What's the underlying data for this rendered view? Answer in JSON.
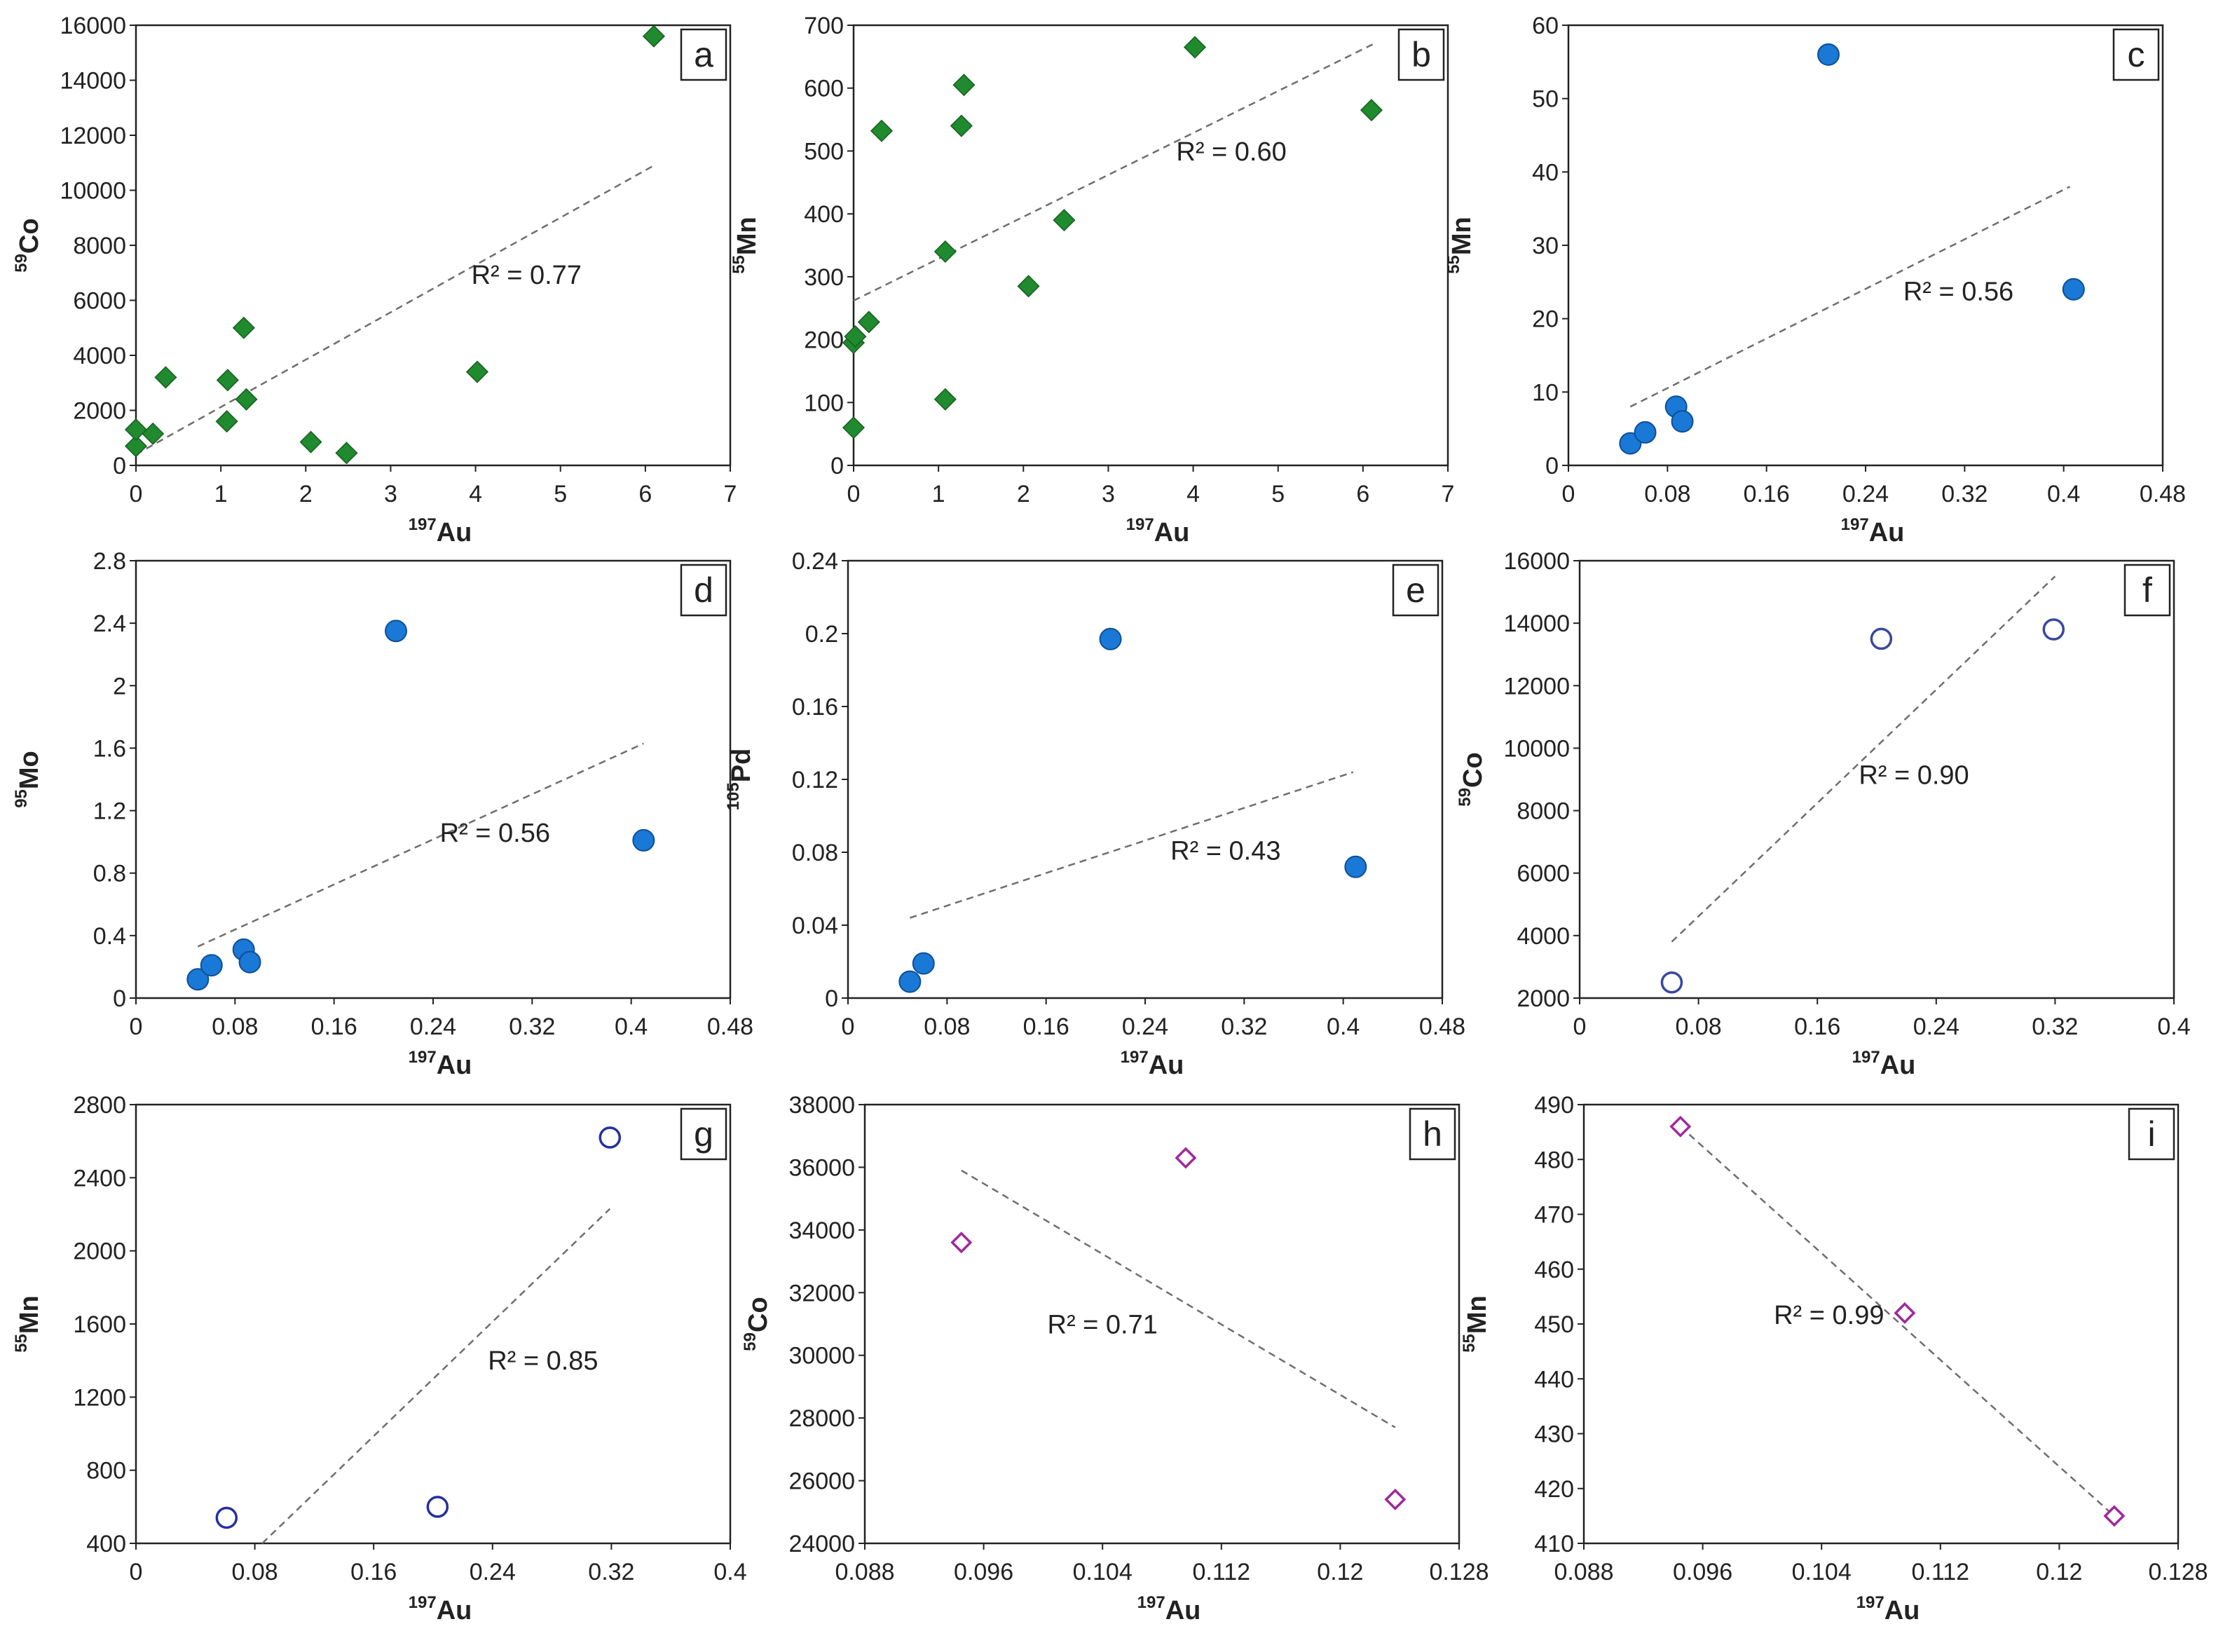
{
  "chart_data": [
    {
      "id": "a",
      "letter": "a",
      "type": "scatter",
      "marker": "diamond-filled",
      "color": "#1f8a2e",
      "xlabel": {
        "sup": "197",
        "base": "Au"
      },
      "ylabel": {
        "sup": "59",
        "base": "Co"
      },
      "xlim": [
        0,
        7
      ],
      "xticks": [
        0,
        1,
        2,
        3,
        4,
        5,
        6,
        7
      ],
      "xtick_labels": [
        "0",
        "1",
        "2",
        "3",
        "4",
        "5",
        "6",
        "7"
      ],
      "ylim": [
        0,
        16000
      ],
      "yticks": [
        0,
        2000,
        4000,
        6000,
        8000,
        10000,
        12000,
        14000,
        16000
      ],
      "ytick_labels": [
        "0",
        "2000",
        "4000",
        "6000",
        "8000",
        "10000",
        "12000",
        "14000",
        "16000"
      ],
      "x": [
        0.0,
        0.0,
        0.2,
        0.35,
        1.07,
        1.08,
        1.27,
        1.3,
        2.06,
        2.48,
        4.02,
        6.1
      ],
      "y": [
        700,
        1300,
        1150,
        3200,
        1600,
        3100,
        5000,
        2400,
        850,
        450,
        3400,
        15600
      ],
      "trendline": {
        "x": [
          0.0,
          6.1
        ],
        "y": [
          400,
          10900
        ]
      },
      "r2": {
        "label": "R² = 0.77",
        "x": 4.6,
        "y": 6600
      }
    },
    {
      "id": "b",
      "letter": "b",
      "type": "scatter",
      "marker": "diamond-filled",
      "color": "#1f8a2e",
      "xlabel": {
        "sup": "197",
        "base": "Au"
      },
      "ylabel": {
        "sup": "55",
        "base": "Mn"
      },
      "xlim": [
        0,
        7
      ],
      "xticks": [
        0,
        1,
        2,
        3,
        4,
        5,
        6,
        7
      ],
      "xtick_labels": [
        "0",
        "1",
        "2",
        "3",
        "4",
        "5",
        "6",
        "7"
      ],
      "ylim": [
        0,
        700
      ],
      "yticks": [
        0,
        100,
        200,
        300,
        400,
        500,
        600,
        700
      ],
      "ytick_labels": [
        "0",
        "100",
        "200",
        "300",
        "400",
        "500",
        "600",
        "700"
      ],
      "x": [
        0.0,
        0.0,
        0.02,
        0.18,
        0.33,
        1.08,
        1.08,
        1.27,
        1.3,
        2.06,
        2.48,
        4.02,
        6.1
      ],
      "y": [
        60,
        195,
        205,
        228,
        532,
        105,
        340,
        540,
        605,
        285,
        390,
        665,
        565
      ],
      "trendline": {
        "x": [
          0.0,
          6.15
        ],
        "y": [
          262,
          672
        ]
      },
      "r2": {
        "label": "R² = 0.60",
        "x": 4.45,
        "y": 485
      }
    },
    {
      "id": "c",
      "letter": "c",
      "type": "scatter",
      "marker": "circle-filled",
      "color": "#1a78d6",
      "xlabel": {
        "sup": "197",
        "base": "Au"
      },
      "ylabel": {
        "sup": "55",
        "base": "Mn"
      },
      "xlim": [
        0,
        0.48
      ],
      "xticks": [
        0,
        0.08,
        0.16,
        0.24,
        0.32,
        0.4,
        0.48
      ],
      "xtick_labels": [
        "0",
        "0.08",
        "0.16",
        "0.24",
        "0.32",
        "0.4",
        "0.48"
      ],
      "ylim": [
        0,
        60
      ],
      "yticks": [
        0,
        10,
        20,
        30,
        40,
        50,
        60
      ],
      "ytick_labels": [
        "0",
        "10",
        "20",
        "30",
        "40",
        "50",
        "60"
      ],
      "x": [
        0.05,
        0.062,
        0.087,
        0.092,
        0.21,
        0.408
      ],
      "y": [
        3,
        4.5,
        8,
        6,
        56,
        24
      ],
      "trendline": {
        "x": [
          0.05,
          0.405
        ],
        "y": [
          8,
          38
        ]
      },
      "r2": {
        "label": "R² = 0.56",
        "x": 0.315,
        "y": 22.5
      }
    },
    {
      "id": "d",
      "letter": "d",
      "type": "scatter",
      "marker": "circle-filled",
      "color": "#1a78d6",
      "xlabel": {
        "sup": "197",
        "base": "Au"
      },
      "ylabel": {
        "sup": "95",
        "base": "Mo"
      },
      "xlim": [
        0,
        0.48
      ],
      "xticks": [
        0,
        0.08,
        0.16,
        0.24,
        0.32,
        0.4,
        0.48
      ],
      "xtick_labels": [
        "0",
        "0.08",
        "0.16",
        "0.24",
        "0.32",
        "0.4",
        "0.48"
      ],
      "ylim": [
        0,
        2.8
      ],
      "yticks": [
        0,
        0.4,
        0.8,
        1.2,
        1.6,
        2,
        2.4,
        2.8
      ],
      "ytick_labels": [
        "0",
        "0.4",
        "0.8",
        "1.2",
        "1.6",
        "2",
        "2.4",
        "2.8"
      ],
      "x": [
        0.05,
        0.061,
        0.087,
        0.092,
        0.21,
        0.41
      ],
      "y": [
        0.12,
        0.21,
        0.31,
        0.23,
        2.35,
        1.01
      ],
      "trendline": {
        "x": [
          0.05,
          0.41
        ],
        "y": [
          0.33,
          1.63
        ]
      },
      "r2": {
        "label": "R² = 0.56",
        "x": 0.29,
        "y": 1.0
      }
    },
    {
      "id": "e",
      "letter": "e",
      "type": "scatter",
      "marker": "circle-filled",
      "color": "#1a78d6",
      "xlabel": {
        "sup": "197",
        "base": "Au"
      },
      "ylabel": {
        "sup": "105",
        "base": "Pd"
      },
      "xlim": [
        0,
        0.48
      ],
      "xticks": [
        0,
        0.08,
        0.16,
        0.24,
        0.32,
        0.4,
        0.48
      ],
      "xtick_labels": [
        "0",
        "0.08",
        "0.16",
        "0.24",
        "0.32",
        "0.4",
        "0.48"
      ],
      "ylim": [
        0,
        0.24
      ],
      "yticks": [
        0,
        0.04,
        0.08,
        0.12,
        0.16,
        0.2,
        0.24
      ],
      "ytick_labels": [
        "0",
        "0.04",
        "0.08",
        "0.12",
        "0.16",
        "0.2",
        "0.24"
      ],
      "x": [
        0.05,
        0.061,
        0.212,
        0.41
      ],
      "y": [
        0.009,
        0.019,
        0.197,
        0.072
      ],
      "trendline": {
        "x": [
          0.05,
          0.408
        ],
        "y": [
          0.044,
          0.124
        ]
      },
      "r2": {
        "label": "R² = 0.43",
        "x": 0.305,
        "y": 0.076
      }
    },
    {
      "id": "f",
      "letter": "f",
      "type": "scatter",
      "marker": "circle-open",
      "color": "#3848a0",
      "xlabel": {
        "sup": "197",
        "base": "Au"
      },
      "ylabel": {
        "sup": "59",
        "base": "Co"
      },
      "xlim": [
        0,
        0.4
      ],
      "xticks": [
        0,
        0.08,
        0.16,
        0.24,
        0.32,
        0.4
      ],
      "xtick_labels": [
        "0",
        "0.08",
        "0.16",
        "0.24",
        "0.32",
        "0.4"
      ],
      "ylim": [
        2000,
        16000
      ],
      "yticks": [
        2000,
        4000,
        6000,
        8000,
        10000,
        12000,
        14000,
        16000
      ],
      "ytick_labels": [
        "2000",
        "4000",
        "6000",
        "8000",
        "10000",
        "12000",
        "14000",
        "16000"
      ],
      "x": [
        0.062,
        0.203,
        0.319
      ],
      "y": [
        2500,
        13500,
        13800
      ],
      "trendline": {
        "x": [
          0.062,
          0.32
        ],
        "y": [
          3800,
          15500
        ]
      },
      "r2": {
        "label": "R² = 0.90",
        "x": 0.225,
        "y": 8850
      }
    },
    {
      "id": "g",
      "letter": "g",
      "type": "scatter",
      "marker": "circle-open",
      "color": "#2430a0",
      "xlabel": {
        "sup": "197",
        "base": "Au"
      },
      "ylabel": {
        "sup": "55",
        "base": "Mn"
      },
      "xlim": [
        0,
        0.4
      ],
      "xticks": [
        0,
        0.08,
        0.16,
        0.24,
        0.32,
        0.4
      ],
      "xtick_labels": [
        "0",
        "0.08",
        "0.16",
        "0.24",
        "0.32",
        "0.4"
      ],
      "ylim": [
        400,
        2800
      ],
      "yticks": [
        400,
        800,
        1200,
        1600,
        2000,
        2400,
        2800
      ],
      "ytick_labels": [
        "400",
        "800",
        "1200",
        "1600",
        "2000",
        "2400",
        "2800"
      ],
      "x": [
        0.061,
        0.203,
        0.319
      ],
      "y": [
        540,
        600,
        2620
      ],
      "trendline": {
        "x": [
          0.085,
          0.319
        ],
        "y": [
          400,
          2230
        ]
      },
      "r2": {
        "label": "R² = 0.85",
        "x": 0.274,
        "y": 1350
      }
    },
    {
      "id": "h",
      "letter": "h",
      "type": "scatter",
      "marker": "diamond-open",
      "color": "#a0289c",
      "xlabel": {
        "sup": "197",
        "base": "Au"
      },
      "ylabel": {
        "sup": "59",
        "base": "Co"
      },
      "xlim": [
        0.088,
        0.128
      ],
      "xticks": [
        0.088,
        0.096,
        0.104,
        0.112,
        0.12,
        0.128
      ],
      "xtick_labels": [
        "0.088",
        "0.096",
        "0.104",
        "0.112",
        "0.12",
        "0.128"
      ],
      "ylim": [
        24000,
        38000
      ],
      "yticks": [
        24000,
        26000,
        28000,
        30000,
        32000,
        34000,
        36000,
        38000
      ],
      "ytick_labels": [
        "24000",
        "26000",
        "28000",
        "30000",
        "32000",
        "34000",
        "36000",
        "38000"
      ],
      "x": [
        0.0945,
        0.1096,
        0.1237
      ],
      "y": [
        33600,
        36300,
        25400
      ],
      "trendline": {
        "x": [
          0.0945,
          0.1237
        ],
        "y": [
          35900,
          27700
        ]
      },
      "r2": {
        "label": "R² = 0.71",
        "x": 0.104,
        "y": 30700
      }
    },
    {
      "id": "i",
      "letter": "i",
      "type": "scatter",
      "marker": "diamond-open",
      "color": "#a0289c",
      "xlabel": {
        "sup": "197",
        "base": "Au"
      },
      "ylabel": {
        "sup": "55",
        "base": "Mn"
      },
      "xlim": [
        0.088,
        0.128
      ],
      "xticks": [
        0.088,
        0.096,
        0.104,
        0.112,
        0.12,
        0.128
      ],
      "xtick_labels": [
        "0.088",
        "0.096",
        "0.104",
        "0.112",
        "0.12",
        "0.128"
      ],
      "ylim": [
        410,
        490
      ],
      "yticks": [
        410,
        420,
        430,
        440,
        450,
        460,
        470,
        480,
        490
      ],
      "ytick_labels": [
        "410",
        "420",
        "430",
        "440",
        "450",
        "460",
        "470",
        "480",
        "490"
      ],
      "x": [
        0.0945,
        0.1096,
        0.1237
      ],
      "y": [
        486,
        452,
        415
      ],
      "trendline": {
        "x": [
          0.0945,
          0.1237
        ],
        "y": [
          486,
          415
        ]
      },
      "r2": {
        "label": "R² = 0.99",
        "x": 0.1045,
        "y": 450
      }
    }
  ]
}
